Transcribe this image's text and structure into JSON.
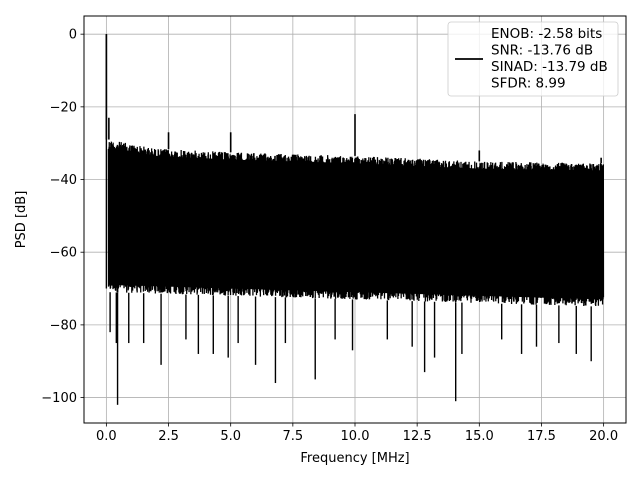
{
  "chart_data": {
    "type": "line",
    "title": "",
    "xlabel": "Frequency [MHz]",
    "ylabel": "PSD [dB]",
    "xlim": [
      -0.9,
      20.9
    ],
    "ylim": [
      -107,
      5
    ],
    "x_ticks": [
      0.0,
      2.5,
      5.0,
      7.5,
      10.0,
      12.5,
      15.0,
      17.5,
      20.0
    ],
    "x_tick_labels": [
      "0.0",
      "2.5",
      "5.0",
      "7.5",
      "10.0",
      "12.5",
      "15.0",
      "17.5",
      "20.0"
    ],
    "y_ticks": [
      0,
      -20,
      -40,
      -60,
      -80,
      -100
    ],
    "y_tick_labels": [
      "0",
      "−20",
      "−40",
      "−60",
      "−80",
      "−100"
    ],
    "grid": true,
    "legend_position": "top-right",
    "series": [
      {
        "name": "ENOB: -2.58 bits\nSNR: -13.76 dB\nSINAD: -13.79 dB\nSFDR: 8.99",
        "color": "#000000",
        "noise_floor_top": [
          [
            0.1,
            -29
          ],
          [
            2.0,
            -31.5
          ],
          [
            5.0,
            -32.5
          ],
          [
            10.0,
            -33.5
          ],
          [
            15.0,
            -35
          ],
          [
            20.0,
            -35.5
          ]
        ],
        "noise_floor_bottom": [
          [
            0.1,
            -71
          ],
          [
            5.0,
            -72
          ],
          [
            10.0,
            -73
          ],
          [
            15.0,
            -74
          ],
          [
            20.0,
            -75
          ]
        ],
        "peaks": [
          {
            "x": 0.0,
            "y": 0
          },
          {
            "x": 0.1,
            "y": -23
          },
          {
            "x": 2.5,
            "y": -27
          },
          {
            "x": 5.0,
            "y": -27
          },
          {
            "x": 10.0,
            "y": -22
          },
          {
            "x": 15.0,
            "y": -32
          },
          {
            "x": 19.9,
            "y": -34
          }
        ],
        "dips": [
          {
            "x": 0.15,
            "y": -82
          },
          {
            "x": 0.4,
            "y": -85
          },
          {
            "x": 0.45,
            "y": -102
          },
          {
            "x": 0.9,
            "y": -85
          },
          {
            "x": 1.5,
            "y": -85
          },
          {
            "x": 2.2,
            "y": -91
          },
          {
            "x": 3.2,
            "y": -84
          },
          {
            "x": 3.7,
            "y": -88
          },
          {
            "x": 4.3,
            "y": -88
          },
          {
            "x": 4.9,
            "y": -89
          },
          {
            "x": 5.3,
            "y": -85
          },
          {
            "x": 6.0,
            "y": -91
          },
          {
            "x": 6.8,
            "y": -96
          },
          {
            "x": 7.2,
            "y": -85
          },
          {
            "x": 8.4,
            "y": -95
          },
          {
            "x": 9.2,
            "y": -84
          },
          {
            "x": 9.9,
            "y": -87
          },
          {
            "x": 11.3,
            "y": -84
          },
          {
            "x": 12.3,
            "y": -86
          },
          {
            "x": 12.8,
            "y": -93
          },
          {
            "x": 13.2,
            "y": -89
          },
          {
            "x": 14.05,
            "y": -101
          },
          {
            "x": 14.3,
            "y": -88
          },
          {
            "x": 15.9,
            "y": -84
          },
          {
            "x": 16.7,
            "y": -88
          },
          {
            "x": 17.3,
            "y": -86
          },
          {
            "x": 18.2,
            "y": -85
          },
          {
            "x": 18.9,
            "y": -88
          },
          {
            "x": 19.5,
            "y": -90
          }
        ]
      }
    ]
  }
}
